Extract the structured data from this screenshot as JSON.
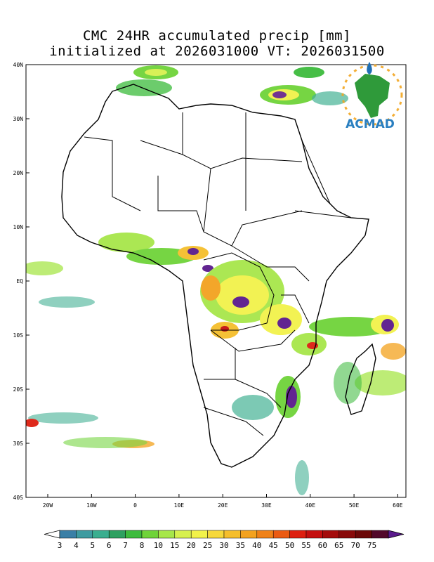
{
  "title": {
    "line1": "CMC 24HR accumulated precip [mm]",
    "line2": "initialized at 2026031000 VT: 2026031500"
  },
  "map": {
    "lon_labels": [
      "20W",
      "10W",
      "0",
      "10E",
      "20E",
      "30E",
      "40E",
      "50E",
      "60E"
    ],
    "lat_labels": [
      "40N",
      "30N",
      "20N",
      "10N",
      "EQ",
      "10S",
      "20S",
      "30S",
      "40S"
    ]
  },
  "logo": {
    "text": "ACMAD"
  },
  "colorbar": {
    "labels": [
      "3",
      "4",
      "5",
      "6",
      "7",
      "8",
      "10",
      "15",
      "20",
      "25",
      "30",
      "35",
      "40",
      "45",
      "50",
      "55",
      "60",
      "65",
      "70",
      "75"
    ],
    "colors": [
      "#3a7fa6",
      "#3f9ba0",
      "#3aae8f",
      "#2ea060",
      "#3dbb3d",
      "#6fd339",
      "#a7e64a",
      "#d7f04f",
      "#f2f24a",
      "#f6d83b",
      "#f5be2c",
      "#f3a21f",
      "#ef8118",
      "#ea5a12",
      "#dd1f10",
      "#c40f0f",
      "#a40c0c",
      "#880a0a",
      "#6b0808",
      "#52082a"
    ],
    "end_colors": {
      "low": "#ffffff",
      "high": "#5a1a8c"
    }
  }
}
